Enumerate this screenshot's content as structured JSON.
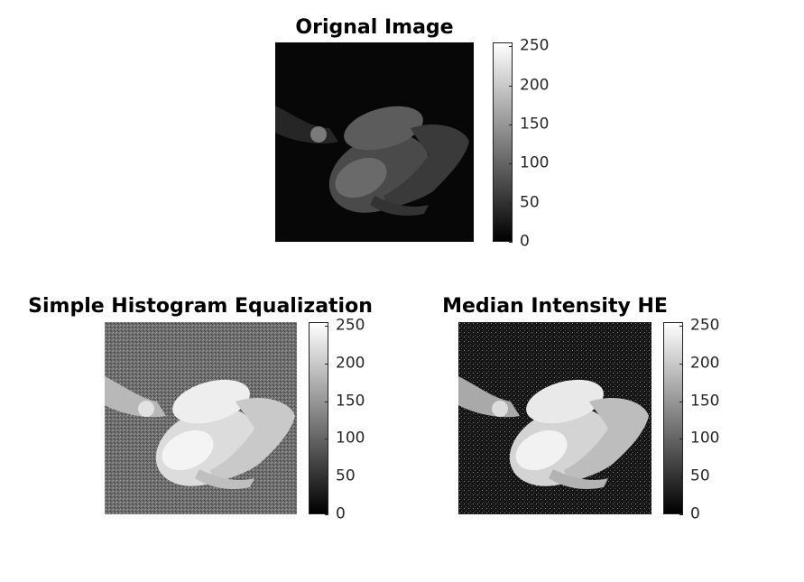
{
  "panels": [
    {
      "title": "Orignal Image",
      "style": "dark",
      "colorbar": {
        "ticks": [
          "250",
          "200",
          "150",
          "100",
          "50",
          "0"
        ],
        "min": 0,
        "max": 255,
        "colormap": "gray"
      }
    },
    {
      "title": "Simple Histogram Equalization",
      "style": "equalized",
      "colorbar": {
        "ticks": [
          "250",
          "200",
          "150",
          "100",
          "50",
          "0"
        ],
        "min": 0,
        "max": 255,
        "colormap": "gray"
      }
    },
    {
      "title": "Median Intensity HE",
      "style": "median",
      "colorbar": {
        "ticks": [
          "250",
          "200",
          "150",
          "100",
          "50",
          "0"
        ],
        "min": 0,
        "max": 255,
        "colormap": "gray"
      }
    }
  ]
}
